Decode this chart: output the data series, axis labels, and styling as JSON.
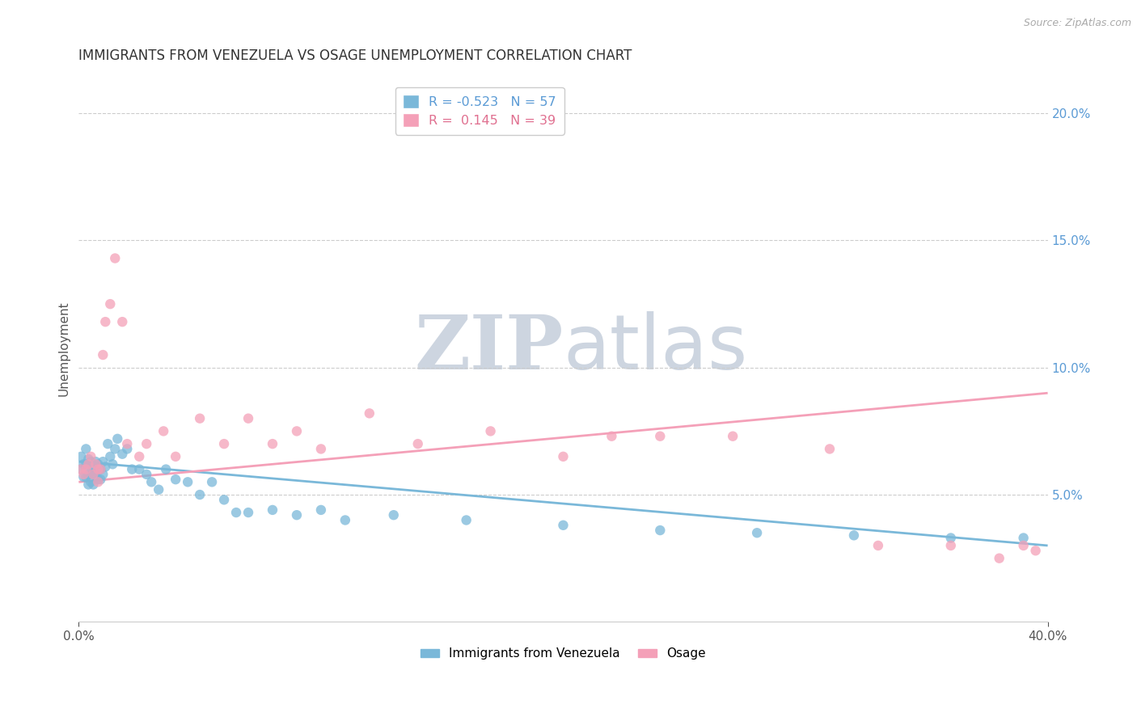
{
  "title": "IMMIGRANTS FROM VENEZUELA VS OSAGE UNEMPLOYMENT CORRELATION CHART",
  "source": "Source: ZipAtlas.com",
  "ylabel": "Unemployment",
  "xlim": [
    0.0,
    0.4
  ],
  "ylim": [
    0.0,
    0.215
  ],
  "yticks_right": [
    0.05,
    0.1,
    0.15,
    0.2
  ],
  "ytick_right_labels": [
    "5.0%",
    "10.0%",
    "15.0%",
    "20.0%"
  ],
  "blue_color": "#7ab8d9",
  "pink_color": "#f4a0b8",
  "blue_label": "Immigrants from Venezuela",
  "pink_label": "Osage",
  "R_blue": -0.523,
  "N_blue": 57,
  "R_pink": 0.145,
  "N_pink": 39,
  "watermark_zip": "ZIP",
  "watermark_atlas": "atlas",
  "watermark_color": "#cdd5e0",
  "blue_trend_start": 0.063,
  "blue_trend_end": 0.03,
  "pink_trend_start": 0.055,
  "pink_trend_end": 0.09,
  "blue_scatter_x": [
    0.001,
    0.001,
    0.002,
    0.002,
    0.003,
    0.003,
    0.003,
    0.004,
    0.004,
    0.004,
    0.005,
    0.005,
    0.005,
    0.006,
    0.006,
    0.006,
    0.007,
    0.007,
    0.008,
    0.008,
    0.009,
    0.009,
    0.01,
    0.01,
    0.011,
    0.012,
    0.013,
    0.014,
    0.015,
    0.016,
    0.018,
    0.02,
    0.022,
    0.025,
    0.028,
    0.03,
    0.033,
    0.036,
    0.04,
    0.045,
    0.05,
    0.055,
    0.06,
    0.065,
    0.07,
    0.08,
    0.09,
    0.1,
    0.11,
    0.13,
    0.16,
    0.2,
    0.24,
    0.28,
    0.32,
    0.36,
    0.39
  ],
  "blue_scatter_y": [
    0.065,
    0.06,
    0.062,
    0.057,
    0.068,
    0.062,
    0.057,
    0.064,
    0.058,
    0.054,
    0.063,
    0.059,
    0.055,
    0.061,
    0.058,
    0.054,
    0.063,
    0.058,
    0.062,
    0.056,
    0.06,
    0.056,
    0.063,
    0.058,
    0.061,
    0.07,
    0.065,
    0.062,
    0.068,
    0.072,
    0.066,
    0.068,
    0.06,
    0.06,
    0.058,
    0.055,
    0.052,
    0.06,
    0.056,
    0.055,
    0.05,
    0.055,
    0.048,
    0.043,
    0.043,
    0.044,
    0.042,
    0.044,
    0.04,
    0.042,
    0.04,
    0.038,
    0.036,
    0.035,
    0.034,
    0.033,
    0.033
  ],
  "pink_scatter_x": [
    0.001,
    0.002,
    0.003,
    0.004,
    0.005,
    0.006,
    0.007,
    0.008,
    0.008,
    0.009,
    0.01,
    0.011,
    0.013,
    0.015,
    0.018,
    0.02,
    0.025,
    0.028,
    0.035,
    0.04,
    0.05,
    0.06,
    0.07,
    0.08,
    0.09,
    0.1,
    0.12,
    0.14,
    0.17,
    0.2,
    0.22,
    0.24,
    0.27,
    0.31,
    0.33,
    0.36,
    0.38,
    0.39,
    0.395
  ],
  "pink_scatter_y": [
    0.06,
    0.058,
    0.06,
    0.062,
    0.065,
    0.058,
    0.062,
    0.06,
    0.055,
    0.06,
    0.105,
    0.118,
    0.125,
    0.143,
    0.118,
    0.07,
    0.065,
    0.07,
    0.075,
    0.065,
    0.08,
    0.07,
    0.08,
    0.07,
    0.075,
    0.068,
    0.082,
    0.07,
    0.075,
    0.065,
    0.073,
    0.073,
    0.073,
    0.068,
    0.03,
    0.03,
    0.025,
    0.03,
    0.028
  ]
}
